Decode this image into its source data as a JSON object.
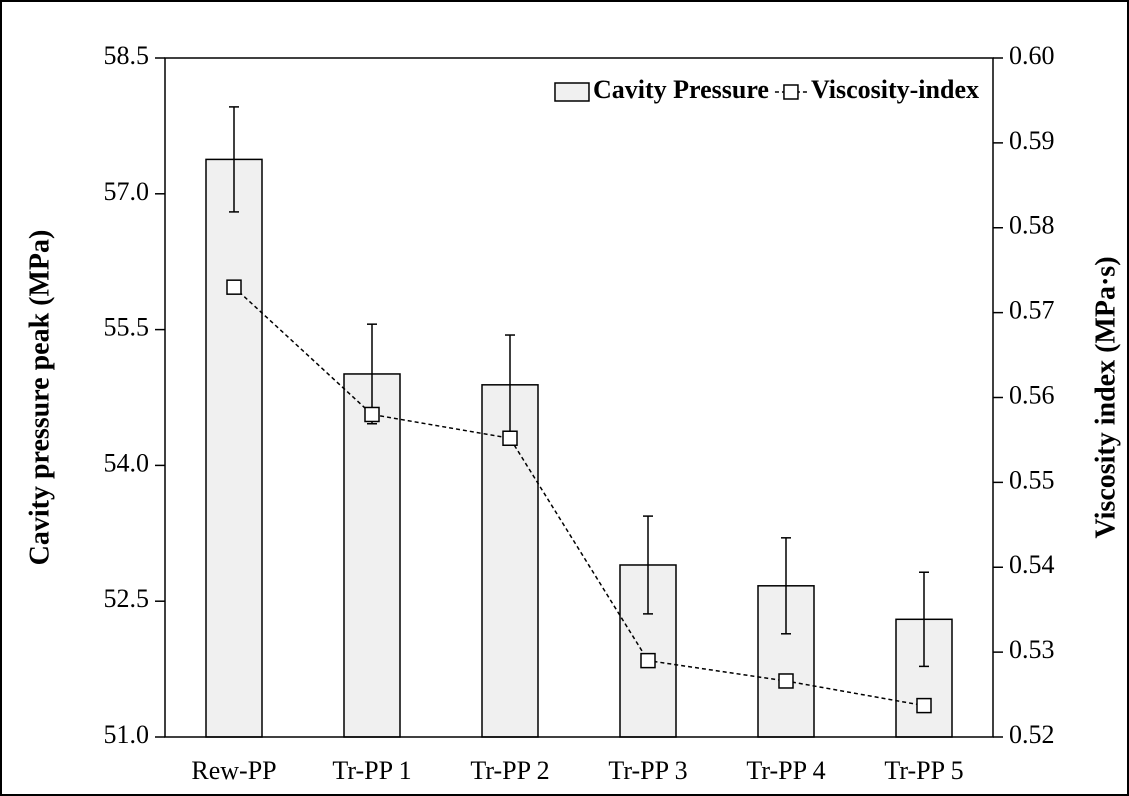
{
  "chart_data": {
    "type": "bar",
    "categories": [
      "Rew-PP",
      "Tr-PP 1",
      "Tr-PP 2",
      "Tr-PP 3",
      "Tr-PP 4",
      "Tr-PP 5"
    ],
    "series": [
      {
        "name": "Cavity Pressure",
        "type": "bar",
        "color": "#f0f0f0",
        "values": [
          57.38,
          55.01,
          54.89,
          52.9,
          52.67,
          52.3
        ],
        "errors": [
          0.58,
          0.55,
          0.55,
          0.54,
          0.53,
          0.52
        ]
      },
      {
        "name": "Viscosity-index",
        "type": "line",
        "axis": "y2",
        "color": "#000000",
        "values": [
          0.573,
          0.558,
          0.5552,
          0.529,
          0.5266,
          0.5237
        ]
      }
    ],
    "ylabel": "Cavity pressure peak (MPa)",
    "y2label": "Viscosity index (MPa·s)",
    "ylim": [
      51.0,
      58.5
    ],
    "yticks": [
      {
        "value": 51,
        "label": "51.0"
      },
      52.5,
      {
        "value": 54,
        "label": "54.0"
      },
      55.5,
      {
        "value": 57,
        "label": "57.0"
      },
      58.5
    ],
    "y2lim": [
      0.52,
      0.6
    ],
    "y2ticks": [
      0.52,
      0.53,
      0.54,
      0.55,
      0.56,
      0.57,
      0.58,
      0.59,
      {
        "value": 0.6,
        "label": "0.60"
      }
    ],
    "legend": "upper right",
    "grid": false
  }
}
